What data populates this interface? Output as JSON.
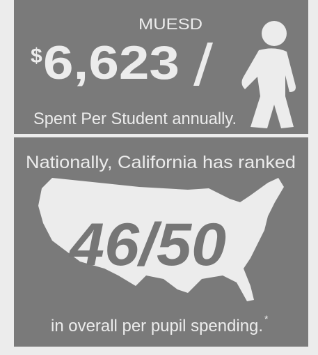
{
  "top": {
    "district": "MUESD",
    "currency": "$",
    "amount": "6,623",
    "slash": "/",
    "caption": "Spent Per Student annually."
  },
  "bottom": {
    "heading": "Nationally, California has ranked",
    "rank": "46/50",
    "footer": "in overall per pupil spending.",
    "footnote_mark": "*"
  }
}
